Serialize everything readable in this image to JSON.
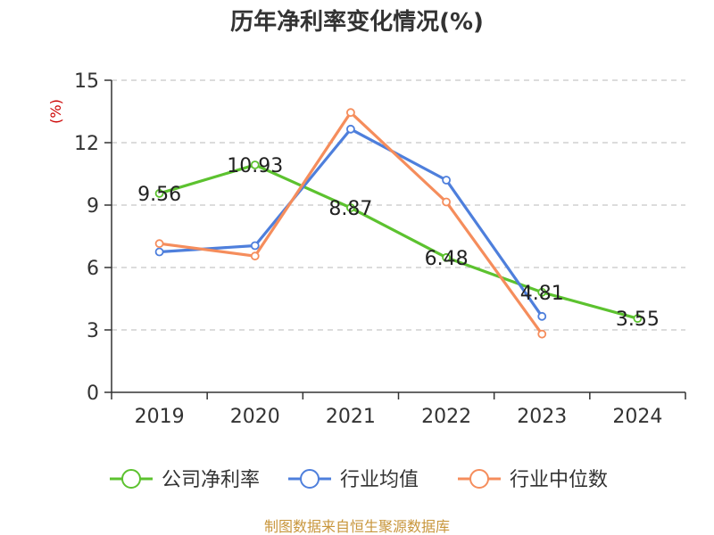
{
  "chart_data": {
    "type": "line",
    "title": "历年净利率变化情况(%)",
    "ylabel": "(%)",
    "xlabel": "",
    "categories": [
      "2019",
      "2020",
      "2021",
      "2022",
      "2023",
      "2024"
    ],
    "ylim": [
      0,
      15
    ],
    "yticks": [
      0,
      3,
      6,
      9,
      12,
      15
    ],
    "ytick_labels": [
      "0",
      "3",
      "6",
      "9",
      "12",
      "15"
    ],
    "grid": true,
    "legend_position": "bottom",
    "series": [
      {
        "name": "公司净利率",
        "color": "#5cc22f",
        "values": [
          9.56,
          10.93,
          8.87,
          6.48,
          4.81,
          3.55
        ],
        "labels": [
          "9.56",
          "10.93",
          "8.87",
          "6.48",
          "4.81",
          "3.55"
        ]
      },
      {
        "name": "行业均值",
        "color": "#4e7fdc",
        "values": [
          6.75,
          7.05,
          12.65,
          10.2,
          3.65,
          null
        ]
      },
      {
        "name": "行业中位数",
        "color": "#f58d5c",
        "values": [
          7.15,
          6.55,
          13.45,
          9.15,
          2.8,
          null
        ]
      }
    ],
    "source": "制图数据来自恒生聚源数据库"
  },
  "colors": {
    "axis": "#333333",
    "grid": "#c8c8c8",
    "ylabel": "#cc0000",
    "source": "#c8963c"
  }
}
